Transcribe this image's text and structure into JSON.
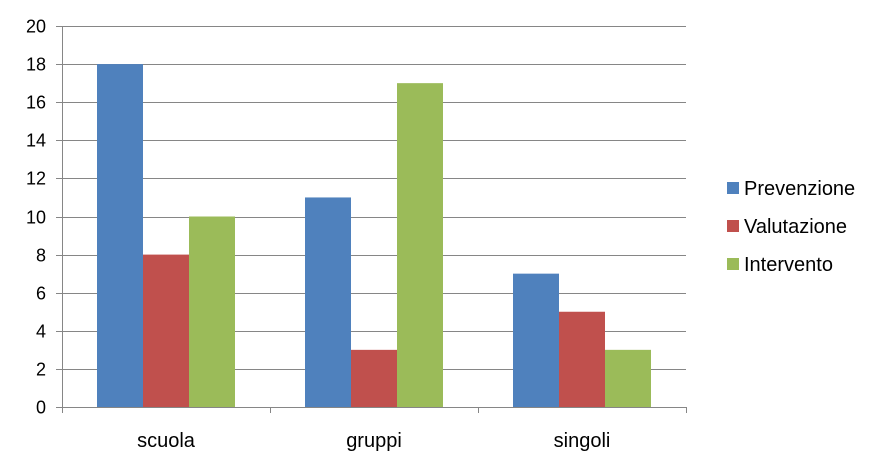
{
  "chart_data": {
    "type": "bar",
    "categories": [
      "scuola",
      "gruppi",
      "singoli"
    ],
    "series": [
      {
        "name": "Prevenzione",
        "values": [
          18,
          11,
          7
        ],
        "color": "#4F81BD"
      },
      {
        "name": "Valutazione",
        "values": [
          8,
          3,
          5
        ],
        "color": "#C0504D"
      },
      {
        "name": "Intervento",
        "values": [
          10,
          17,
          3
        ],
        "color": "#9BBB59"
      }
    ],
    "title": "",
    "xlabel": "",
    "ylabel": "",
    "ylim": [
      0,
      20
    ],
    "yticks": [
      0,
      2,
      4,
      6,
      8,
      10,
      12,
      14,
      16,
      18,
      20
    ],
    "grid": true,
    "legend_position": "right",
    "grid_color": "#868686",
    "axis_color": "#868686"
  }
}
